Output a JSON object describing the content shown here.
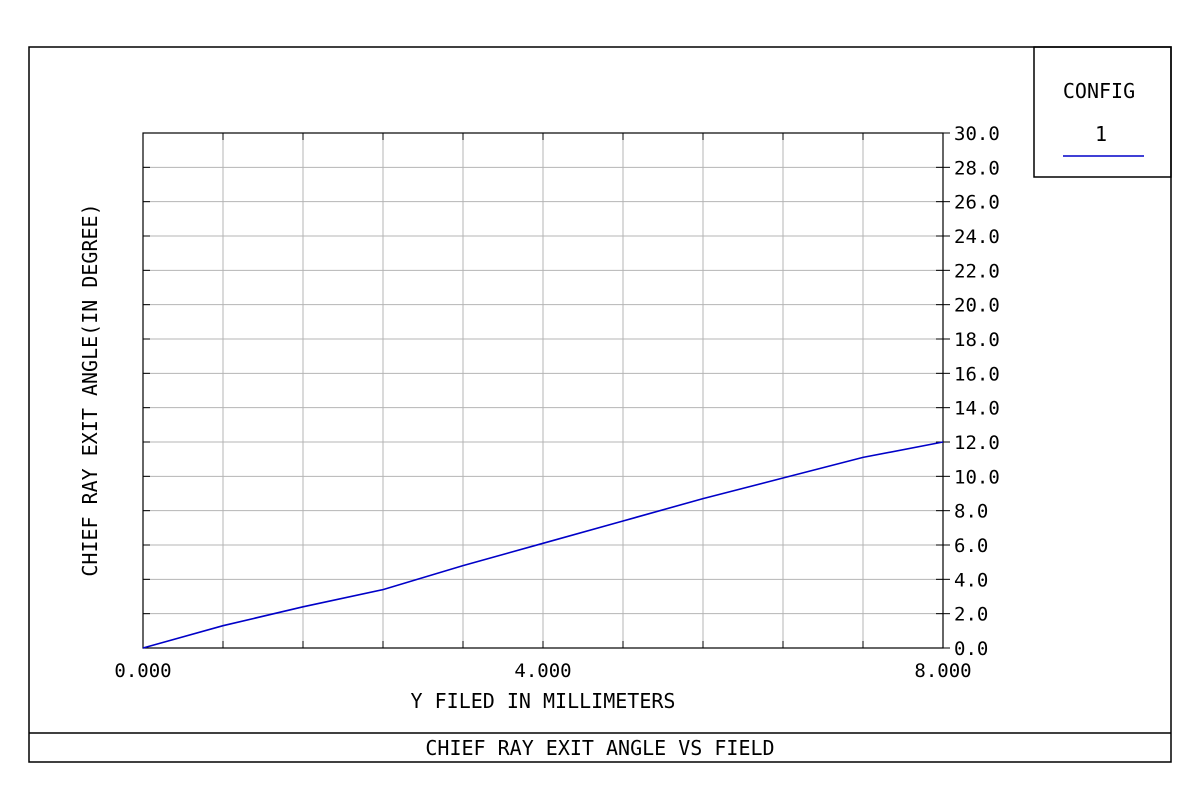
{
  "chart_data": {
    "type": "line",
    "title": "CHIEF RAY EXIT ANGLE VS FIELD",
    "xlabel": "Y FILED IN MILLIMETERS",
    "ylabel": "CHIEF RAY EXIT ANGLE(IN DEGREE)",
    "xlim": [
      0,
      8
    ],
    "ylim": [
      0,
      30
    ],
    "x_tick_labels": [
      "0.000",
      "4.000",
      "8.000"
    ],
    "y_tick_labels": [
      "0.0",
      "2.0",
      "4.0",
      "6.0",
      "8.0",
      "10.0",
      "12.0",
      "14.0",
      "16.0",
      "18.0",
      "20.0",
      "22.0",
      "24.0",
      "26.0",
      "28.0",
      "30.0"
    ],
    "grid": true,
    "legend": {
      "title": "CONFIG",
      "entries": [
        "1"
      ],
      "placement": "top-right"
    },
    "series": [
      {
        "color": "#0000c8",
        "x": [
          0,
          0.8,
          1.6,
          2.4,
          3.2,
          4.0,
          4.8,
          5.6,
          6.4,
          7.2,
          8.0
        ],
        "y": [
          0.0,
          1.3,
          2.4,
          3.4,
          4.8,
          6.1,
          7.4,
          8.7,
          9.9,
          11.1,
          12.0
        ]
      }
    ]
  }
}
